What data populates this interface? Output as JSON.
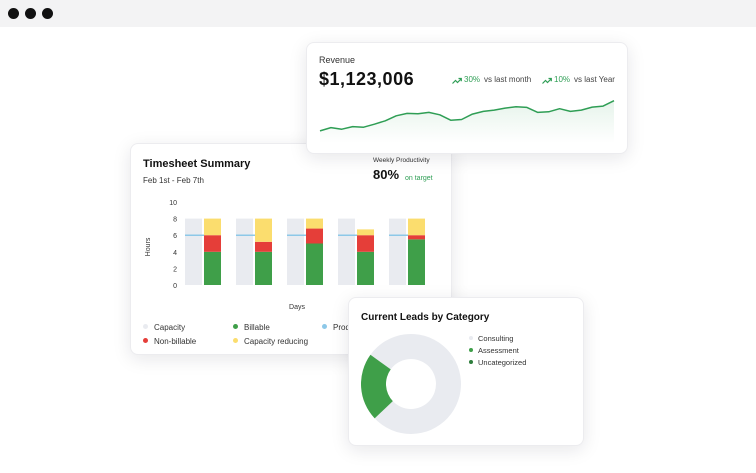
{
  "colors": {
    "capacity": "#e9ebf0",
    "billable": "#3f9f49",
    "non_billable": "#e53e39",
    "capacity_reducing": "#fbdd6e",
    "productive": "#8dc8e8",
    "accent_green": "#2f9e55",
    "donut_green": "#3f9f49",
    "donut_gray": "#e9ebf0"
  },
  "revenue": {
    "label": "Revenue",
    "value": "$1,123,006",
    "trend1": {
      "pct": "30%",
      "label": "vs last month",
      "icon": "trend-up-icon"
    },
    "trend2": {
      "pct": "10%",
      "label": "vs last Year",
      "icon": "trend-up-icon"
    },
    "line": [
      3,
      4,
      3.5,
      4.3,
      4.1,
      5,
      6,
      7.5,
      8.2,
      8.1,
      8.5,
      7.8,
      6.2,
      6.4,
      8,
      8.8,
      9.2,
      9.8,
      10.2,
      10,
      8.5,
      8.7,
      9.6,
      8.8,
      9.2,
      10.1,
      10.4,
      12
    ]
  },
  "timesheet": {
    "title": "Timesheet Summary",
    "date_range": "Feb 1st - Feb 7th",
    "weekly_productivity_label": "Weekly Productivity",
    "weekly_productivity_value": "80%",
    "weekly_productivity_status": "on target",
    "legend": [
      {
        "name": "Capacity",
        "color": "#e9ebf0"
      },
      {
        "name": "Billable",
        "color": "#3f9f49"
      },
      {
        "name": "Prod",
        "color": "#8dc8e8"
      },
      {
        "name": "Non-billable",
        "color": "#e53e39"
      },
      {
        "name": "Capacity reducing",
        "color": "#fbdd6e"
      }
    ]
  },
  "chart_data": {
    "type": "bar",
    "categories": [
      "",
      "",
      "",
      "",
      ""
    ],
    "xlabel": "Days",
    "ylabel": "Hours",
    "ylim": [
      0,
      10
    ],
    "yticks": [
      0,
      2,
      4,
      6,
      8,
      10
    ],
    "grid": false,
    "series": [
      {
        "name": "Capacity",
        "values": [
          8,
          8,
          8,
          8,
          8
        ]
      },
      {
        "name": "Billable",
        "values": [
          4,
          4,
          5,
          4,
          5.5
        ]
      },
      {
        "name": "Non-billable",
        "values": [
          2,
          1.2,
          1.8,
          2,
          0.5
        ]
      },
      {
        "name": "Capacity reducing",
        "values": [
          2,
          2.8,
          1.2,
          0.7,
          2
        ]
      },
      {
        "name": "Productive",
        "values": [
          6,
          6,
          6,
          6,
          6
        ]
      }
    ]
  },
  "leads": {
    "title": "Current Leads by Category",
    "categories": [
      {
        "name": "Consulting",
        "color": "#e9ebf0",
        "share": 0.78
      },
      {
        "name": "Assessment",
        "color": "#3f9f49",
        "share": 0.22
      },
      {
        "name": "Uncategorized",
        "color": "#3f9f49",
        "share": 0
      }
    ]
  }
}
